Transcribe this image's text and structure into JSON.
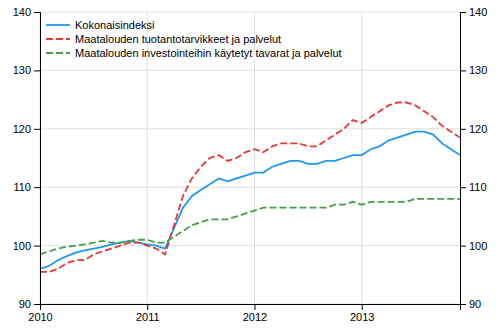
{
  "chart_data": {
    "type": "line",
    "title": "",
    "categories": [
      "2010",
      null,
      null,
      null,
      null,
      null,
      null,
      null,
      null,
      null,
      null,
      null,
      "2011",
      null,
      null,
      null,
      null,
      null,
      null,
      null,
      null,
      null,
      null,
      null,
      "2012",
      null,
      null,
      null,
      null,
      null,
      null,
      null,
      null,
      null,
      null,
      null,
      "2013",
      null,
      null,
      null,
      null,
      null,
      null,
      null,
      null,
      null,
      null,
      null
    ],
    "series": [
      {
        "name": "Kokonaisindeksi",
        "color": "#2196f3",
        "line_style": "solid",
        "values": [
          96.0,
          96.5,
          97.5,
          98.2,
          98.8,
          99.2,
          99.5,
          99.8,
          100.2,
          100.5,
          100.8,
          100.5,
          100.2,
          100.0,
          99.5,
          103.0,
          106.5,
          108.5,
          109.5,
          110.5,
          111.5,
          111.0,
          111.5,
          112.0,
          112.5,
          112.5,
          113.5,
          114.0,
          114.5,
          114.5,
          114.0,
          114.0,
          114.5,
          114.5,
          115.0,
          115.5,
          115.5,
          116.5,
          117.0,
          118.0,
          118.5,
          119.0,
          119.5,
          119.5,
          119.0,
          117.5,
          116.5,
          115.5
        ]
      },
      {
        "name": "Maatalouden tuotantotarvikkeet ja palvelut",
        "color": "#e53935",
        "line_style": "dashed",
        "values": [
          95.5,
          95.5,
          96.0,
          97.0,
          97.5,
          97.5,
          98.5,
          99.0,
          99.5,
          100.0,
          100.5,
          100.5,
          100.0,
          99.5,
          98.5,
          103.5,
          108.5,
          111.5,
          113.5,
          115.0,
          115.5,
          114.5,
          115.0,
          116.0,
          116.5,
          116.0,
          117.0,
          117.5,
          117.5,
          117.5,
          117.0,
          117.0,
          118.0,
          119.0,
          120.0,
          121.5,
          121.0,
          122.0,
          123.0,
          124.0,
          124.5,
          124.5,
          124.0,
          123.0,
          122.0,
          120.5,
          119.5,
          118.5
        ]
      },
      {
        "name": "Maatalouden investointeihin käytetyt tavarat ja palvelut",
        "color": "#43a047",
        "line_style": "dashed",
        "values": [
          98.5,
          99.0,
          99.5,
          99.8,
          100.0,
          100.2,
          100.5,
          100.8,
          100.5,
          100.5,
          100.8,
          101.0,
          101.0,
          100.5,
          100.5,
          101.5,
          102.5,
          103.5,
          104.0,
          104.5,
          104.5,
          104.5,
          105.0,
          105.5,
          106.0,
          106.5,
          106.5,
          106.5,
          106.5,
          106.5,
          106.5,
          106.5,
          106.5,
          107.0,
          107.0,
          107.5,
          107.0,
          107.5,
          107.5,
          107.5,
          107.5,
          107.5,
          108.0,
          108.0,
          108.0,
          108.0,
          108.0,
          108.0
        ]
      }
    ],
    "ylim": [
      90,
      140
    ],
    "yticks": [
      90,
      100,
      110,
      120,
      130,
      140
    ],
    "y2lim": [
      90,
      140
    ],
    "y2ticks": [
      90,
      100,
      110,
      120,
      130,
      140
    ],
    "grid": true,
    "legend": "upper left"
  }
}
